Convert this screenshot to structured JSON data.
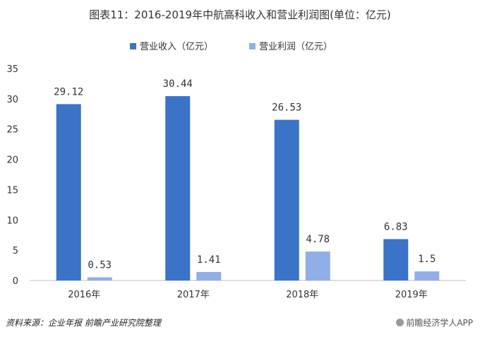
{
  "chart_data": {
    "type": "bar",
    "title": "图表11：2016-2019年中航高科收入和营业利润图(单位：亿元)",
    "categories": [
      "2016年",
      "2017年",
      "2018年",
      "2019年"
    ],
    "series": [
      {
        "name": "营业收入（亿元）",
        "color": "#3a73c8",
        "values": [
          29.12,
          30.44,
          26.53,
          6.83
        ],
        "labels": [
          "29.12",
          "30.44",
          "26.53",
          "6.83"
        ]
      },
      {
        "name": "营业利润（亿元）",
        "color": "#92aee8",
        "values": [
          0.53,
          1.41,
          4.78,
          1.5
        ],
        "labels": [
          "0.53",
          "1.41",
          "4.78",
          "1.5"
        ]
      }
    ],
    "ylim": [
      0,
      35
    ],
    "yticks": [
      "0",
      "5",
      "10",
      "15",
      "20",
      "25",
      "30",
      "35"
    ],
    "grid": false,
    "legend": "top-center"
  },
  "footer": {
    "source": "资料来源：企业年报 前瞻产业研究院整理",
    "brand": "前瞻经济学人APP"
  }
}
